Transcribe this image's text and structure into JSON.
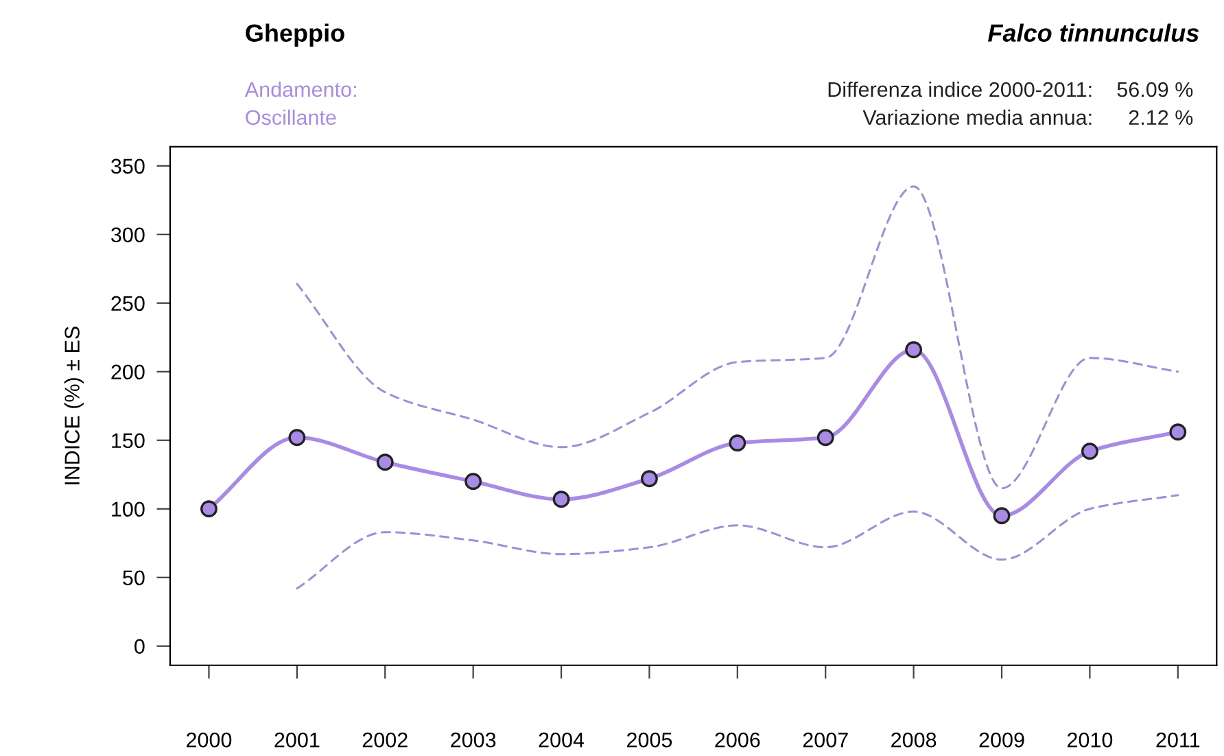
{
  "chart_data": {
    "type": "line",
    "title": "Gheppio",
    "subtitle": "Falco tinnunculus",
    "ylabel": "INDICE (%) ± ES",
    "annotations": [
      "Andamento:",
      "Oscillante",
      "Differenza indice 2000-2011:",
      "Variazione media annua:",
      "56.09 %",
      "2.12 %"
    ],
    "x": [
      2000,
      2001,
      2002,
      2003,
      2004,
      2005,
      2006,
      2007,
      2008,
      2009,
      2010,
      2011
    ],
    "series": [
      {
        "color": "#a98be6",
        "marker": "circle",
        "line_style": "solid",
        "values": [
          100,
          152,
          134,
          120,
          107,
          122,
          148,
          152,
          216,
          95,
          142,
          156
        ]
      },
      {
        "color": "#9c90d6",
        "marker": "none",
        "line_style": "dashed",
        "values": [
          null,
          264,
          185,
          165,
          145,
          170,
          207,
          210,
          335,
          115,
          210,
          200
        ]
      },
      {
        "color": "#9c90d6",
        "marker": "none",
        "line_style": "dashed",
        "values": [
          null,
          42,
          83,
          77,
          67,
          72,
          88,
          72,
          98,
          63,
          100,
          110
        ]
      }
    ],
    "xlim": [
      1999.56,
      2011.44
    ],
    "ylim": [
      -14,
      364
    ],
    "xticks": [
      2000,
      2001,
      2002,
      2003,
      2004,
      2005,
      2006,
      2007,
      2008,
      2009,
      2010,
      2011
    ],
    "yticks": [
      0,
      50,
      100,
      150,
      200,
      250,
      300,
      350
    ],
    "grid": false,
    "legend": false
  }
}
